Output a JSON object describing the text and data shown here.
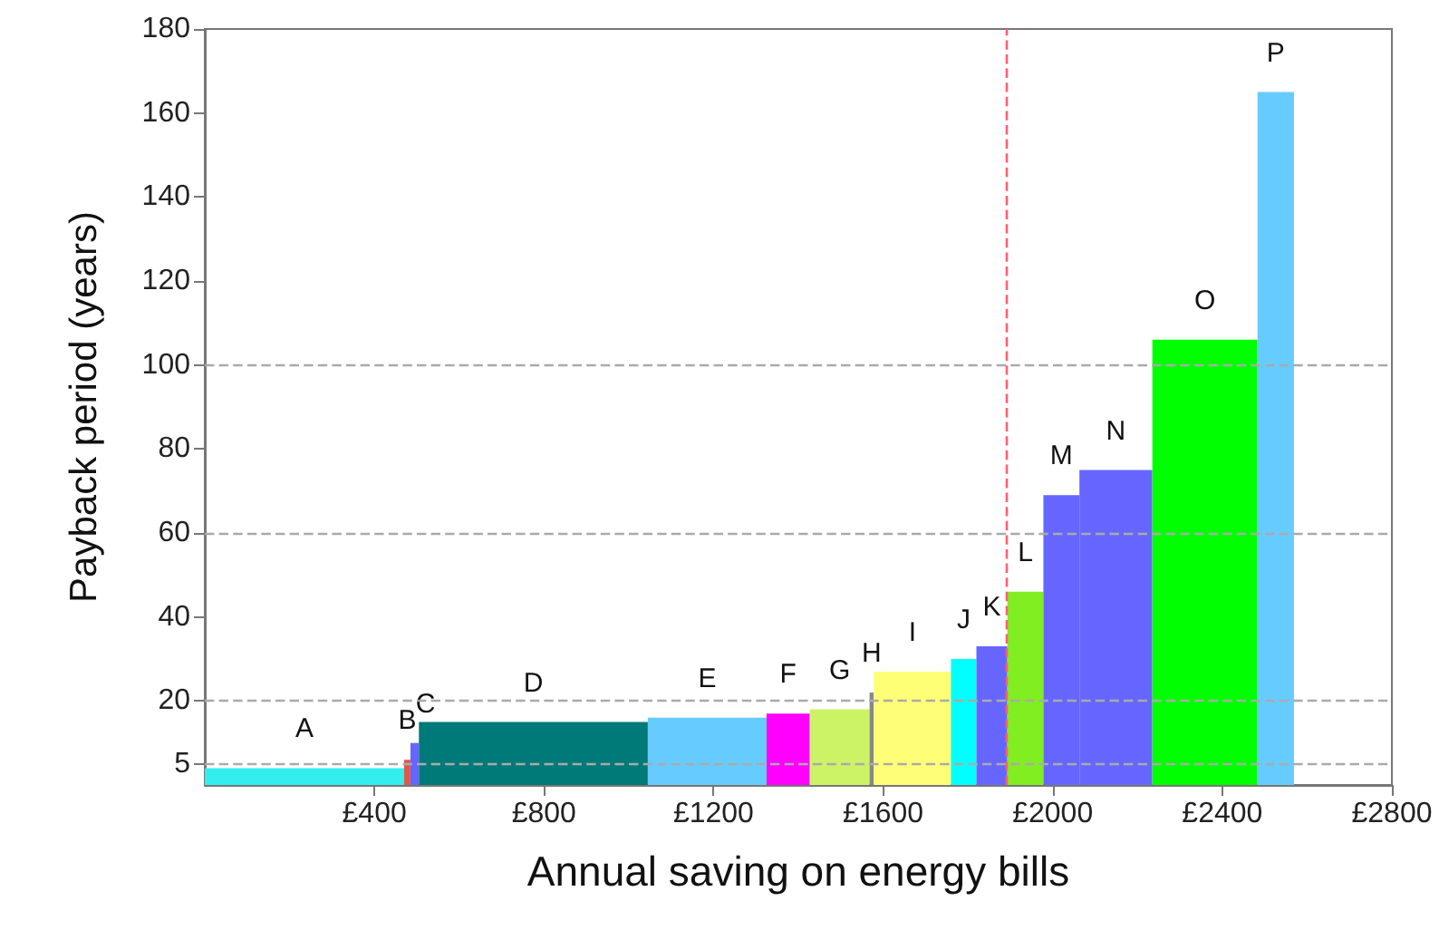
{
  "chart_data": {
    "type": "histogram",
    "xlabel": "Annual saving on energy bills",
    "ylabel": "Payback period (years)",
    "bins": [
      0,
      470,
      485,
      505,
      1045,
      1325,
      1427,
      1568,
      1578,
      1760,
      1820,
      1893,
      1978,
      2063,
      2235,
      2483,
      2569
    ],
    "values": [
      4,
      6,
      10,
      15,
      16,
      17,
      18,
      22,
      27,
      30,
      33,
      46,
      69,
      75,
      106,
      165
    ],
    "colors": [
      "#33eeee",
      "#e0584a",
      "#6666ff",
      "#007a78",
      "#66ccff",
      "#ff00ff",
      "#ccf266",
      "#888888",
      "#ffff77",
      "#00ffff",
      "#6666ff",
      "#80ee20",
      "#6666ff",
      "#6666ff",
      "#00ff00",
      "#66ccff"
    ],
    "xlim": [
      0,
      2800
    ],
    "xticks": [
      {
        "value": 400,
        "label": "£400"
      },
      {
        "value": 800,
        "label": "£800"
      },
      {
        "value": 1200,
        "label": "£1200"
      },
      {
        "value": 1600,
        "label": "£1600"
      },
      {
        "value": 2000,
        "label": "£2000"
      },
      {
        "value": 2400,
        "label": "£2400"
      },
      {
        "value": 2800,
        "label": "£2800"
      }
    ],
    "ylim": [
      0,
      180
    ],
    "yticks": [
      5,
      20,
      40,
      60,
      80,
      100,
      120,
      140,
      160,
      180
    ],
    "grid": false,
    "ref_lines": [
      {
        "axis": "y",
        "value": 5,
        "color": "#aaaaaa",
        "line_style": "dashed"
      },
      {
        "axis": "y",
        "value": 20,
        "color": "#aaaaaa",
        "line_style": "dashed"
      },
      {
        "axis": "y",
        "value": 60,
        "color": "#aaaaaa",
        "line_style": "dashed"
      },
      {
        "axis": "y",
        "value": 100,
        "color": "#aaaaaa",
        "line_style": "dashed"
      },
      {
        "axis": "x",
        "value": 1890,
        "color": "#ff6070",
        "line_style": "dashed"
      }
    ],
    "annotations": [
      {
        "text": "A",
        "x": 235,
        "y": 4
      },
      {
        "text": "B",
        "x": 477.5,
        "y": 6
      },
      {
        "text": "C",
        "x": 495,
        "y": 10
      },
      {
        "text": "D",
        "x": 775,
        "y": 15
      },
      {
        "text": "E",
        "x": 1185,
        "y": 16
      },
      {
        "text": "F",
        "x": 1376,
        "y": 17
      },
      {
        "text": "G",
        "x": 1497.5,
        "y": 18
      },
      {
        "text": "H",
        "x": 1573,
        "y": 22
      },
      {
        "text": "I",
        "x": 1669,
        "y": 27
      },
      {
        "text": "J",
        "x": 1790,
        "y": 30
      },
      {
        "text": "K",
        "x": 1856.5,
        "y": 33
      },
      {
        "text": "L",
        "x": 1935.5,
        "y": 46
      },
      {
        "text": "M",
        "x": 2020.5,
        "y": 69
      },
      {
        "text": "N",
        "x": 2149,
        "y": 75
      },
      {
        "text": "O",
        "x": 2359,
        "y": 106
      },
      {
        "text": "P",
        "x": 2526,
        "y": 165
      }
    ]
  }
}
